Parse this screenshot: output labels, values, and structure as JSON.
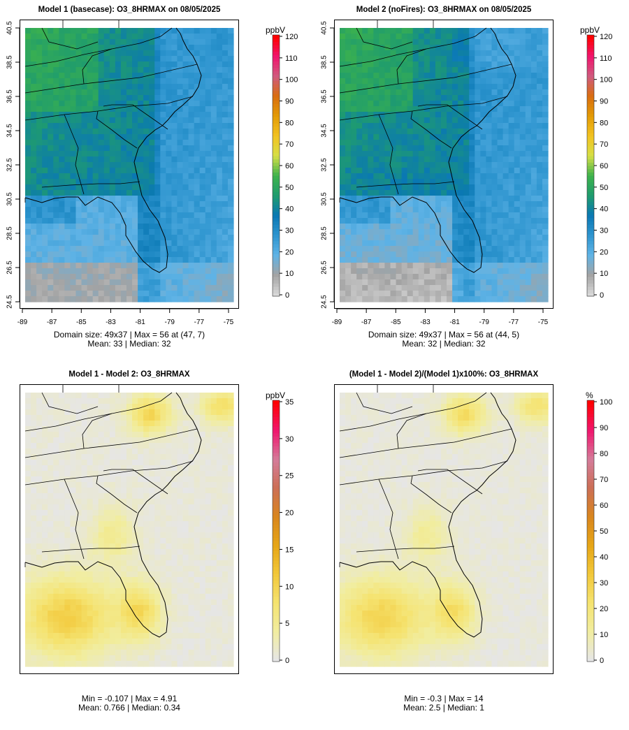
{
  "chart_data": [
    {
      "type": "heatmap",
      "title": "Model 1 (basecase): O3_8HRMAX on 08/05/2025",
      "x_ticks": [
        "-89",
        "-87",
        "-85",
        "-83",
        "-81",
        "-79",
        "-77",
        "-75"
      ],
      "y_ticks": [
        "24.5",
        "26.5",
        "28.5",
        "30.5",
        "32.5",
        "34.5",
        "36.5",
        "38.5",
        "40.5"
      ],
      "xlim": [
        -89,
        -75
      ],
      "ylim": [
        24.5,
        40.5
      ],
      "colorbar": {
        "title": "ppbV",
        "min": 0,
        "max": 120,
        "ticks": [
          "0",
          "10",
          "20",
          "30",
          "40",
          "50",
          "60",
          "70",
          "80",
          "90",
          "100",
          "110",
          "120"
        ]
      },
      "stats": {
        "line1": "Domain size: 49x37 | Max = 56 at (47, 7)",
        "line2": "Mean: 33 |  Median: 32",
        "domain": "49x37",
        "max": 56,
        "max_at": "(47, 7)",
        "mean": 33,
        "median": 32
      },
      "field": "absolute",
      "scenario": "basecase"
    },
    {
      "type": "heatmap",
      "title": "Model 2 (noFires): O3_8HRMAX on 08/05/2025",
      "x_ticks": [
        "-89",
        "-87",
        "-85",
        "-83",
        "-81",
        "-79",
        "-77",
        "-75"
      ],
      "y_ticks": [
        "24.5",
        "26.5",
        "28.5",
        "30.5",
        "32.5",
        "34.5",
        "36.5",
        "38.5",
        "40.5"
      ],
      "xlim": [
        -89,
        -75
      ],
      "ylim": [
        24.5,
        40.5
      ],
      "colorbar": {
        "title": "ppbV",
        "min": 0,
        "max": 120,
        "ticks": [
          "0",
          "10",
          "20",
          "30",
          "40",
          "50",
          "60",
          "70",
          "80",
          "90",
          "100",
          "110",
          "120"
        ]
      },
      "stats": {
        "line1": "Domain size: 49x37 | Max = 56 at (44, 5)",
        "line2": "Mean: 32 |  Median: 32",
        "domain": "49x37",
        "max": 56,
        "max_at": "(44, 5)",
        "mean": 32,
        "median": 32
      },
      "field": "absolute",
      "scenario": "nofires"
    },
    {
      "type": "heatmap",
      "title": "Model 1 - Model 2: O3_8HRMAX",
      "colorbar": {
        "title": "ppbV",
        "min": 0,
        "max": 35,
        "ticks": [
          "0",
          "5",
          "10",
          "15",
          "20",
          "25",
          "30",
          "35"
        ]
      },
      "stats": {
        "line1": "Min = -0.107 | Max = 4.91",
        "line2": "Mean: 0.766 |  Median: 0.34",
        "min": -0.107,
        "max": 4.91,
        "mean": 0.766,
        "median": 0.34
      },
      "field": "difference"
    },
    {
      "type": "heatmap",
      "title": "(Model 1 - Model 2)/(Model 1)x100%: O3_8HRMAX",
      "colorbar": {
        "title": "%",
        "min": 0,
        "max": 100,
        "ticks": [
          "0",
          "10",
          "20",
          "30",
          "40",
          "50",
          "60",
          "70",
          "80",
          "90",
          "100"
        ]
      },
      "stats": {
        "line1": "Min = -0.3 | Max = 14",
        "line2": "Mean: 2.5 |  Median: 1",
        "min": -0.3,
        "max": 14,
        "mean": 2.5,
        "median": 1
      },
      "field": "percent"
    }
  ],
  "colors": {
    "absolute_scale": [
      "#d9d9d9",
      "#a3a3a3",
      "#5fb3e6",
      "#2e95cf",
      "#0a78b4",
      "#1f9c6e",
      "#3db24c",
      "#d6df46",
      "#f2c321",
      "#e39b06",
      "#d96e0f",
      "#cf5b7e",
      "#f0166e",
      "#ff0000"
    ],
    "difference_scale": [
      "#e6e6e6",
      "#f1eda0",
      "#f5e370",
      "#f2c83a",
      "#e6a617",
      "#d9861e",
      "#cc6f55",
      "#d47c9a",
      "#f0166e",
      "#ff0000"
    ]
  }
}
